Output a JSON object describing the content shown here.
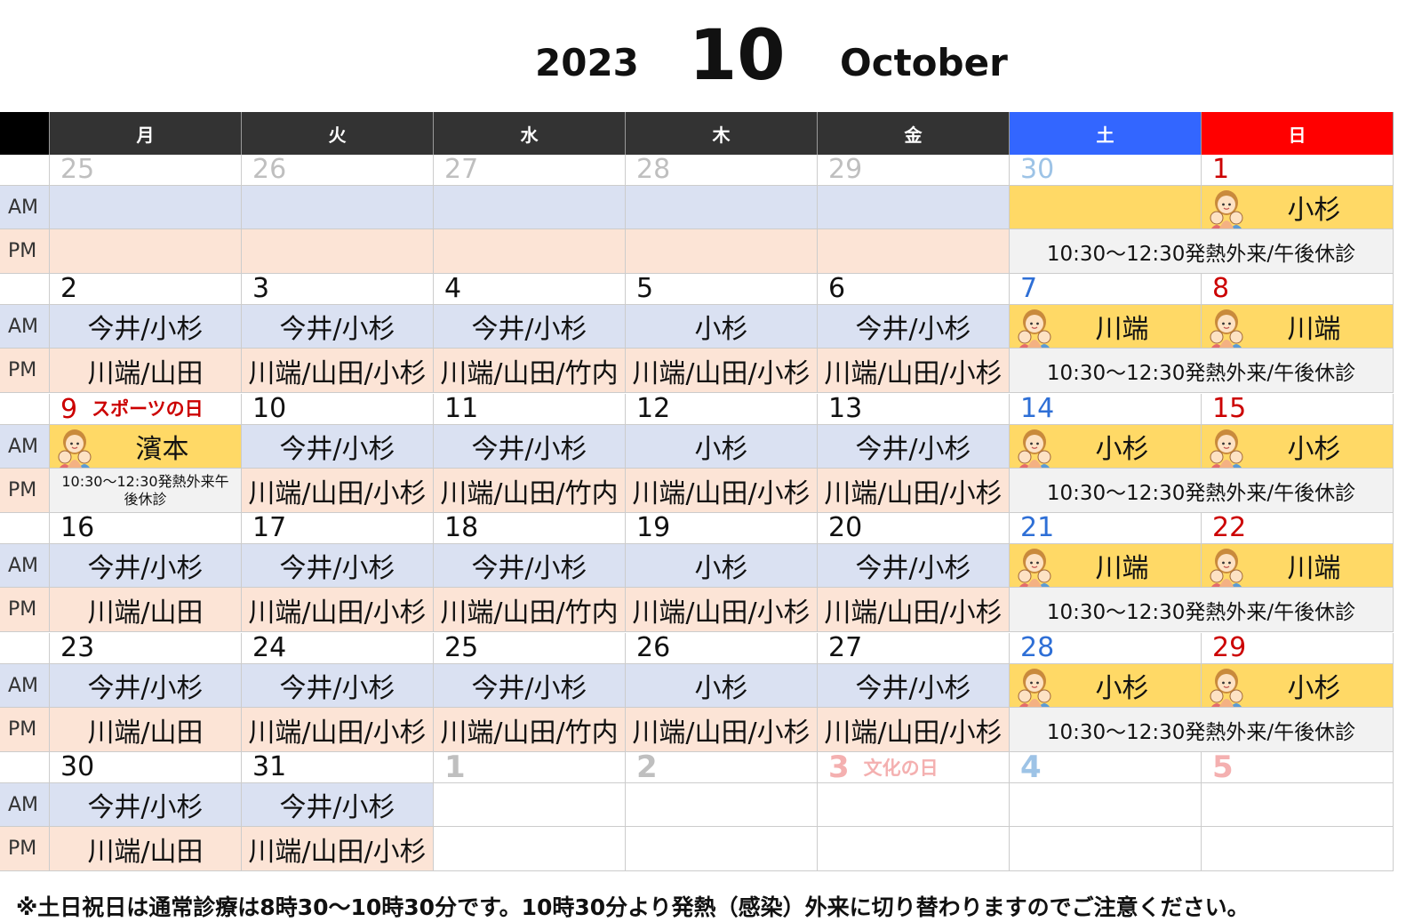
{
  "header": {
    "year": "2023",
    "month": "10",
    "month_name": "October"
  },
  "weekdays": [
    "月",
    "火",
    "水",
    "木",
    "金",
    "土",
    "日"
  ],
  "row_labels": {
    "am": "AM",
    "pm": "PM"
  },
  "colors": {
    "weekday_header": "#333333",
    "sat_header": "#3366ff",
    "sun_header": "#ff0000",
    "am_bg": "#dae1f2",
    "pm_bg": "#fce4d6",
    "weekend_am": "#ffd966",
    "weekend_pm": "#f2f2f2",
    "sat_num": "#2e6fd6",
    "sun_num": "#cc0000"
  },
  "weeks": [
    {
      "days": [
        {
          "n": "25",
          "muted": true,
          "am": "",
          "pm": ""
        },
        {
          "n": "26",
          "muted": true,
          "am": "",
          "pm": ""
        },
        {
          "n": "27",
          "muted": true,
          "am": "",
          "pm": ""
        },
        {
          "n": "28",
          "muted": true,
          "am": "",
          "pm": ""
        },
        {
          "n": "29",
          "muted": true,
          "am": "",
          "pm": ""
        },
        {
          "n": "30",
          "muted": true,
          "am": "",
          "pm": "",
          "kind": "sat"
        },
        {
          "n": "1",
          "am": "小杉",
          "pm": "",
          "kind": "sun",
          "avatar": true
        }
      ],
      "weekend_pm": "10:30～12:30発熱外来/午後休診",
      "sat_empty": true
    },
    {
      "days": [
        {
          "n": "2",
          "am": "今井/小杉",
          "pm": "川端/山田"
        },
        {
          "n": "3",
          "am": "今井/小杉",
          "pm": "川端/山田/小杉"
        },
        {
          "n": "4",
          "am": "今井/小杉",
          "pm": "川端/山田/竹内"
        },
        {
          "n": "5",
          "am": "小杉",
          "pm": "川端/山田/小杉"
        },
        {
          "n": "6",
          "am": "今井/小杉",
          "pm": "川端/山田/小杉"
        },
        {
          "n": "7",
          "am": "川端",
          "pm": "",
          "kind": "sat",
          "avatar": true
        },
        {
          "n": "8",
          "am": "川端",
          "pm": "",
          "kind": "sun",
          "avatar": true
        }
      ],
      "weekend_pm": "10:30～12:30発熱外来/午後休診"
    },
    {
      "days": [
        {
          "n": "9",
          "holiday": "スポーツの日",
          "am": "濱本",
          "pm": "10:30～12:30発熱外来午後休診",
          "kind": "hol",
          "avatar": true
        },
        {
          "n": "10",
          "am": "今井/小杉",
          "pm": "川端/山田/小杉"
        },
        {
          "n": "11",
          "am": "今井/小杉",
          "pm": "川端/山田/竹内"
        },
        {
          "n": "12",
          "am": "小杉",
          "pm": "川端/山田/小杉"
        },
        {
          "n": "13",
          "am": "今井/小杉",
          "pm": "川端/山田/小杉"
        },
        {
          "n": "14",
          "am": "小杉",
          "pm": "",
          "kind": "sat",
          "avatar": true
        },
        {
          "n": "15",
          "am": "小杉",
          "pm": "",
          "kind": "sun",
          "avatar": true
        }
      ],
      "weekend_pm": "10:30～12:30発熱外来/午後休診"
    },
    {
      "days": [
        {
          "n": "16",
          "am": "今井/小杉",
          "pm": "川端/山田"
        },
        {
          "n": "17",
          "am": "今井/小杉",
          "pm": "川端/山田/小杉"
        },
        {
          "n": "18",
          "am": "今井/小杉",
          "pm": "川端/山田/竹内"
        },
        {
          "n": "19",
          "am": "小杉",
          "pm": "川端/山田/小杉"
        },
        {
          "n": "20",
          "am": "今井/小杉",
          "pm": "川端/山田/小杉"
        },
        {
          "n": "21",
          "am": "川端",
          "pm": "",
          "kind": "sat",
          "avatar": true
        },
        {
          "n": "22",
          "am": "川端",
          "pm": "",
          "kind": "sun",
          "avatar": true
        }
      ],
      "weekend_pm": "10:30～12:30発熱外来/午後休診"
    },
    {
      "days": [
        {
          "n": "23",
          "am": "今井/小杉",
          "pm": "川端/山田"
        },
        {
          "n": "24",
          "am": "今井/小杉",
          "pm": "川端/山田/小杉"
        },
        {
          "n": "25",
          "am": "今井/小杉",
          "pm": "川端/山田/竹内"
        },
        {
          "n": "26",
          "am": "小杉",
          "pm": "川端/山田/小杉"
        },
        {
          "n": "27",
          "am": "今井/小杉",
          "pm": "川端/山田/小杉"
        },
        {
          "n": "28",
          "am": "小杉",
          "pm": "",
          "kind": "sat",
          "avatar": true
        },
        {
          "n": "29",
          "am": "小杉",
          "pm": "",
          "kind": "sun",
          "avatar": true
        }
      ],
      "weekend_pm": "10:30～12:30発熱外来/午後休診"
    },
    {
      "days": [
        {
          "n": "30",
          "am": "今井/小杉",
          "pm": "川端/山田"
        },
        {
          "n": "31",
          "am": "今井/小杉",
          "pm": "川端/山田/小杉"
        },
        {
          "n": "1",
          "muted": true,
          "bignum": true,
          "am": "",
          "pm": "",
          "blank": true
        },
        {
          "n": "2",
          "muted": true,
          "bignum": true,
          "am": "",
          "pm": "",
          "blank": true
        },
        {
          "n": "3",
          "muted": true,
          "bignum": true,
          "holiday": "文化の日",
          "am": "",
          "pm": "",
          "blank": true,
          "kind": "mutedhol"
        },
        {
          "n": "4",
          "muted": true,
          "bignum": true,
          "am": "",
          "pm": "",
          "blank": true,
          "kind": "mutedsat"
        },
        {
          "n": "5",
          "muted": true,
          "bignum": true,
          "am": "",
          "pm": "",
          "blank": true,
          "kind": "mutedsun"
        }
      ]
    }
  ],
  "footnote": "※土日祝日は通常診療は8時30～10時30分です。10時30分より発熱（感染）外来に切り替わりますのでご注意ください。"
}
